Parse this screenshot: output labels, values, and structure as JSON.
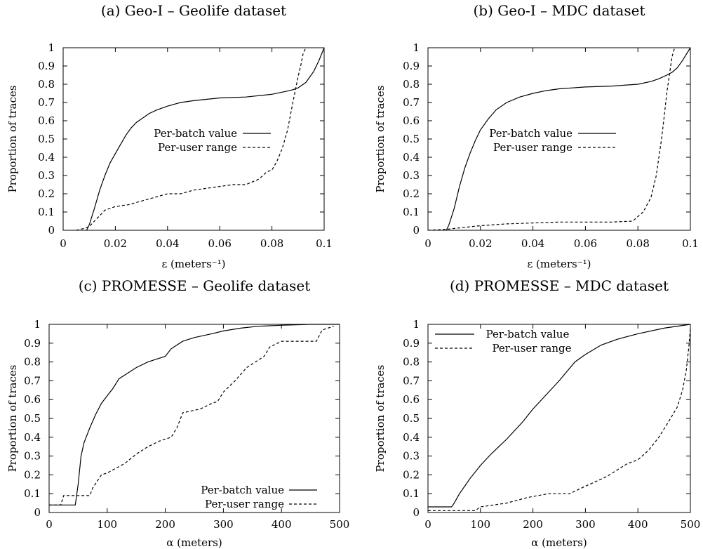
{
  "chart_data": [
    {
      "type": "line",
      "title": "(a) Geo-I – Geolife dataset",
      "xlabel": "ε (meters⁻¹)",
      "ylabel": "Proportion of traces",
      "xlim": [
        0,
        0.1
      ],
      "ylim": [
        0,
        1
      ],
      "xticks": [
        "0",
        "0.02",
        "0.04",
        "0.06",
        "0.08",
        "0.1"
      ],
      "yticks": [
        "0",
        "0.1",
        "0.2",
        "0.3",
        "0.4",
        "0.5",
        "0.6",
        "0.7",
        "0.8",
        "0.9",
        "1"
      ],
      "legend_position": "center-right",
      "series": [
        {
          "name": "Per-batch value",
          "style": "solid",
          "x": [
            0.009,
            0.01,
            0.012,
            0.014,
            0.016,
            0.018,
            0.02,
            0.022,
            0.024,
            0.026,
            0.028,
            0.03,
            0.033,
            0.036,
            0.04,
            0.045,
            0.05,
            0.06,
            0.07,
            0.08,
            0.085,
            0.088,
            0.09,
            0.093,
            0.096,
            0.098,
            0.1
          ],
          "y": [
            0.0,
            0.03,
            0.12,
            0.22,
            0.3,
            0.37,
            0.42,
            0.47,
            0.52,
            0.56,
            0.59,
            0.61,
            0.64,
            0.66,
            0.68,
            0.7,
            0.71,
            0.725,
            0.73,
            0.745,
            0.76,
            0.77,
            0.78,
            0.81,
            0.87,
            0.93,
            1.0
          ]
        },
        {
          "name": "Per-user range",
          "style": "dashed",
          "x": [
            0.005,
            0.008,
            0.01,
            0.012,
            0.014,
            0.016,
            0.02,
            0.025,
            0.03,
            0.035,
            0.04,
            0.045,
            0.05,
            0.055,
            0.06,
            0.065,
            0.07,
            0.075,
            0.078,
            0.08,
            0.082,
            0.084,
            0.086,
            0.088,
            0.089,
            0.09,
            0.091,
            0.092,
            0.093
          ],
          "y": [
            0.0,
            0.01,
            0.02,
            0.05,
            0.08,
            0.11,
            0.13,
            0.14,
            0.16,
            0.18,
            0.2,
            0.2,
            0.22,
            0.23,
            0.24,
            0.25,
            0.25,
            0.28,
            0.32,
            0.33,
            0.38,
            0.45,
            0.55,
            0.7,
            0.77,
            0.84,
            0.9,
            0.97,
            1.0
          ]
        }
      ]
    },
    {
      "type": "line",
      "title": "(b) Geo-I – MDC dataset",
      "xlabel": "ε (meters⁻¹)",
      "ylabel": "Proportion of traces",
      "xlim": [
        0,
        0.1
      ],
      "ylim": [
        0,
        1
      ],
      "xticks": [
        "0",
        "0.02",
        "0.04",
        "0.06",
        "0.08",
        "0.1"
      ],
      "yticks": [
        "0",
        "0.1",
        "0.2",
        "0.3",
        "0.4",
        "0.5",
        "0.6",
        "0.7",
        "0.8",
        "0.9",
        "1"
      ],
      "legend_position": "center-right",
      "series": [
        {
          "name": "Per-batch value",
          "style": "solid",
          "x": [
            0.007,
            0.008,
            0.01,
            0.012,
            0.014,
            0.016,
            0.018,
            0.02,
            0.023,
            0.026,
            0.03,
            0.035,
            0.04,
            0.045,
            0.05,
            0.055,
            0.06,
            0.07,
            0.08,
            0.085,
            0.088,
            0.091,
            0.093,
            0.095,
            0.097,
            0.1
          ],
          "y": [
            0.0,
            0.03,
            0.12,
            0.24,
            0.34,
            0.42,
            0.49,
            0.55,
            0.61,
            0.66,
            0.7,
            0.73,
            0.75,
            0.765,
            0.775,
            0.78,
            0.785,
            0.79,
            0.8,
            0.815,
            0.83,
            0.85,
            0.865,
            0.89,
            0.93,
            1.0
          ]
        },
        {
          "name": "Per-user range",
          "style": "dashed",
          "x": [
            0.0,
            0.007,
            0.01,
            0.02,
            0.03,
            0.04,
            0.05,
            0.06,
            0.07,
            0.078,
            0.082,
            0.085,
            0.087,
            0.089,
            0.09,
            0.091,
            0.092,
            0.093,
            0.094
          ],
          "y": [
            0.0,
            0.005,
            0.01,
            0.025,
            0.035,
            0.04,
            0.045,
            0.045,
            0.045,
            0.05,
            0.1,
            0.18,
            0.3,
            0.5,
            0.62,
            0.75,
            0.85,
            0.95,
            1.0
          ]
        }
      ]
    },
    {
      "type": "line",
      "title": "(c) PROMESSE – Geolife dataset",
      "xlabel": "α (meters)",
      "ylabel": "Proportion of traces",
      "xlim": [
        0,
        500
      ],
      "ylim": [
        0,
        1
      ],
      "xticks": [
        "0",
        "100",
        "200",
        "300",
        "400",
        "500"
      ],
      "yticks": [
        "0",
        "0.1",
        "0.2",
        "0.3",
        "0.4",
        "0.5",
        "0.6",
        "0.7",
        "0.8",
        "0.9",
        "1"
      ],
      "legend_position": "bottom-right",
      "series": [
        {
          "name": "Per-batch value",
          "style": "solid",
          "x": [
            0,
            45,
            50,
            55,
            60,
            70,
            80,
            90,
            100,
            110,
            120,
            130,
            150,
            170,
            190,
            200,
            210,
            230,
            250,
            280,
            300,
            330,
            360,
            400,
            450,
            500
          ],
          "y": [
            0.04,
            0.04,
            0.15,
            0.3,
            0.37,
            0.45,
            0.52,
            0.58,
            0.62,
            0.66,
            0.71,
            0.73,
            0.77,
            0.8,
            0.82,
            0.83,
            0.87,
            0.91,
            0.93,
            0.95,
            0.965,
            0.98,
            0.99,
            0.995,
            1.0,
            1.0
          ]
        },
        {
          "name": "Per-user range",
          "style": "dashed",
          "x": [
            0,
            20,
            25,
            70,
            75,
            90,
            100,
            130,
            150,
            170,
            190,
            210,
            220,
            230,
            260,
            280,
            290,
            300,
            320,
            340,
            370,
            380,
            400,
            460,
            470,
            490
          ],
          "y": [
            0.04,
            0.04,
            0.09,
            0.09,
            0.13,
            0.2,
            0.21,
            0.26,
            0.31,
            0.35,
            0.38,
            0.4,
            0.45,
            0.53,
            0.55,
            0.58,
            0.59,
            0.64,
            0.7,
            0.77,
            0.83,
            0.88,
            0.91,
            0.91,
            0.97,
            0.99
          ]
        }
      ]
    },
    {
      "type": "line",
      "title": "(d) PROMESSE – MDC dataset",
      "xlabel": "α (meters)",
      "ylabel": "Proportion of traces",
      "xlim": [
        0,
        500
      ],
      "ylim": [
        0,
        1
      ],
      "xticks": [
        "0",
        "100",
        "200",
        "300",
        "400",
        "500"
      ],
      "yticks": [
        "0",
        "0.1",
        "0.2",
        "0.3",
        "0.4",
        "0.5",
        "0.6",
        "0.7",
        "0.8",
        "0.9",
        "1"
      ],
      "legend_position": "top-left",
      "series": [
        {
          "name": "Per-batch value",
          "style": "solid",
          "x": [
            0,
            45,
            50,
            60,
            70,
            80,
            100,
            120,
            150,
            180,
            200,
            220,
            250,
            280,
            300,
            330,
            360,
            400,
            450,
            500
          ],
          "y": [
            0.03,
            0.03,
            0.05,
            0.1,
            0.14,
            0.18,
            0.25,
            0.31,
            0.39,
            0.48,
            0.55,
            0.61,
            0.7,
            0.8,
            0.84,
            0.89,
            0.92,
            0.95,
            0.98,
            1.0
          ]
        },
        {
          "name": "Per-user range",
          "style": "dashed",
          "x": [
            0,
            90,
            100,
            150,
            190,
            230,
            270,
            300,
            340,
            380,
            400,
            420,
            440,
            460,
            475,
            485,
            492,
            497,
            500
          ],
          "y": [
            0.01,
            0.01,
            0.03,
            0.05,
            0.08,
            0.1,
            0.1,
            0.14,
            0.19,
            0.26,
            0.28,
            0.33,
            0.4,
            0.49,
            0.56,
            0.65,
            0.75,
            0.88,
            0.98
          ]
        }
      ]
    }
  ]
}
